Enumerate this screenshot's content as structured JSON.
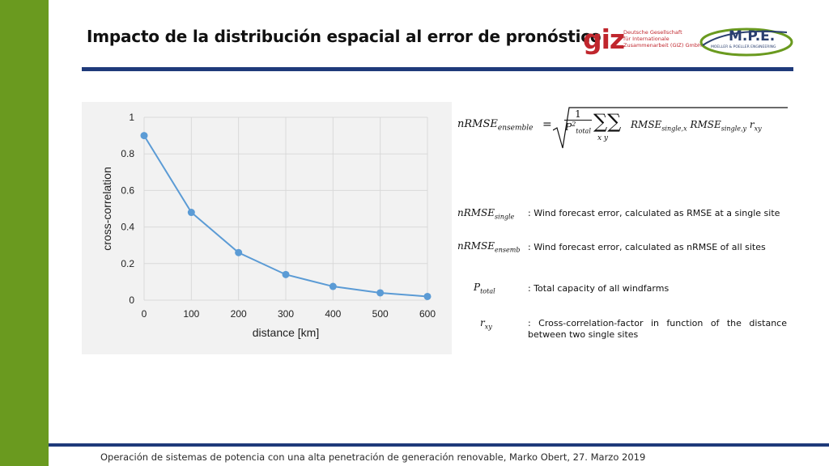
{
  "slide": {
    "title": "Impacto de la distribución espacial al error de pronóstico",
    "footer": "Operación de sistemas de potencia con una alta penetración de generación renovable, Marko Obert, 27. Marzo 2019"
  },
  "logos": {
    "giz_mark": "giz",
    "giz_lines": [
      "Deutsche Gesellschaft",
      "für Internationale",
      "Zusammenarbeit (GIZ) GmbH"
    ],
    "mpe_mark": "M.P.E.",
    "mpe_sub": "MOELLER & POELLER ENGINEERING"
  },
  "colors": {
    "sidebar": "#6a9a1f",
    "rule": "#1f3a7a",
    "series": "#5b9bd5",
    "chart_bg": "#f2f2f2"
  },
  "formula": {
    "lhs_base": "nRMSE",
    "lhs_sub": "ensemble",
    "equals": "=",
    "num": "1",
    "den_base": "P",
    "den_sup": "2",
    "den_sub": "total",
    "sum_symbols": "∑∑",
    "sum_subs": "x    y",
    "rhs": "RMSE",
    "rhs_sub1": "single,x",
    "rhs_sub2": "single,y",
    "r_base": "r",
    "r_sub": "xy"
  },
  "definitions": [
    {
      "sym_base": "nRMSE",
      "sym_sub": "single",
      "text": ": Wind forecast error, calculated as RMSE at a single site"
    },
    {
      "sym_base": "nRMSE",
      "sym_sub": "ensemb",
      "text": ": Wind forecast error, calculated as nRMSE of all sites"
    },
    {
      "sym_base": "P",
      "sym_sub": "total",
      "text": ": Total capacity of all windfarms"
    },
    {
      "sym_base": "r",
      "sym_sub": "xy",
      "text": ": Cross-correlation-factor in function of the distance between two single sites"
    }
  ],
  "chart_data": {
    "type": "line",
    "x": [
      0,
      100,
      200,
      300,
      400,
      500,
      600
    ],
    "series": [
      {
        "values": [
          0.9,
          0.48,
          0.26,
          0.14,
          0.075,
          0.04,
          0.02
        ]
      }
    ],
    "xlabel": "distance [km]",
    "ylabel": "cross-correlation",
    "xlim": [
      0,
      600
    ],
    "ylim": [
      0,
      1
    ],
    "xticks": [
      "0",
      "100",
      "200",
      "300",
      "400",
      "500",
      "600"
    ],
    "yticks": [
      "0",
      "0.2",
      "0.4",
      "0.6",
      "0.8",
      "1"
    ],
    "grid": true
  }
}
